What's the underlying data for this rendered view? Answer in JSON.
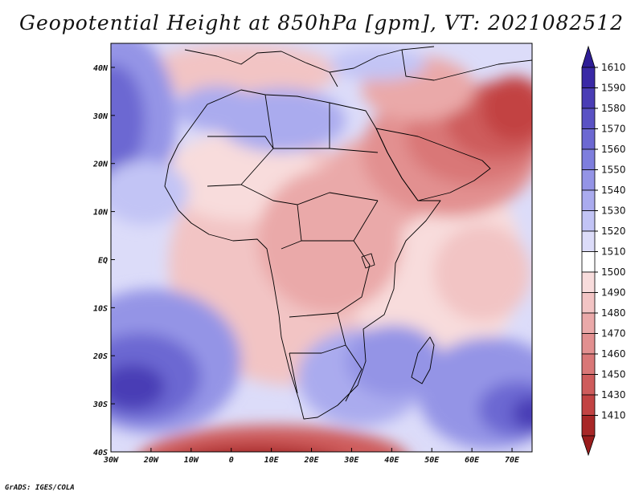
{
  "title": "Geopotential Height at 850hPa [gpm], VT: 2021082512",
  "credit": "GrADS: IGES/COLA",
  "map": {
    "projection": "latlon",
    "lon_range": [
      -30,
      75
    ],
    "lat_range": [
      -40,
      45
    ],
    "lon_ticks": [
      {
        "value": -30,
        "label": "30W"
      },
      {
        "value": -20,
        "label": "20W"
      },
      {
        "value": -10,
        "label": "10W"
      },
      {
        "value": 0,
        "label": "0"
      },
      {
        "value": 10,
        "label": "10E"
      },
      {
        "value": 20,
        "label": "20E"
      },
      {
        "value": 30,
        "label": "30E"
      },
      {
        "value": 40,
        "label": "40E"
      },
      {
        "value": 50,
        "label": "50E"
      },
      {
        "value": 60,
        "label": "60E"
      },
      {
        "value": 70,
        "label": "70E"
      }
    ],
    "lat_ticks": [
      {
        "value": 40,
        "label": "40N"
      },
      {
        "value": 30,
        "label": "30N"
      },
      {
        "value": 20,
        "label": "20N"
      },
      {
        "value": 10,
        "label": "10N"
      },
      {
        "value": 0,
        "label": "EQ"
      },
      {
        "value": -10,
        "label": "10S"
      },
      {
        "value": -20,
        "label": "20S"
      },
      {
        "value": -30,
        "label": "30S"
      },
      {
        "value": -40,
        "label": "40S"
      }
    ],
    "features": {
      "low_centers": [
        {
          "name": "south-atlantic-cold-low",
          "lon": -5,
          "lat": -39
        },
        {
          "name": "arabia-iran-heat-low",
          "lon": 65,
          "lat": 30
        }
      ],
      "high_centers": [
        {
          "name": "south-atlantic-high",
          "lon": -27,
          "lat": -27
        },
        {
          "name": "azores-high",
          "lon": -30,
          "lat": 31
        },
        {
          "name": "mascarene-high",
          "lon": 75,
          "lat": -32
        }
      ]
    }
  },
  "colorbar": {
    "levels": [
      {
        "label": "1610",
        "color": "#3a29a6"
      },
      {
        "label": "1590",
        "color": "#4a3db5"
      },
      {
        "label": "1580",
        "color": "#5a52c4"
      },
      {
        "label": "1570",
        "color": "#6c68d2"
      },
      {
        "label": "1560",
        "color": "#7e7edd"
      },
      {
        "label": "1550",
        "color": "#9494e6"
      },
      {
        "label": "1540",
        "color": "#aaabee"
      },
      {
        "label": "1530",
        "color": "#c2c4f5"
      },
      {
        "label": "1520",
        "color": "#dcdcf9"
      },
      {
        "label": "1510",
        "color": "#ffffff"
      },
      {
        "label": "1500",
        "color": "#f8dcdc"
      },
      {
        "label": "1490",
        "color": "#f2c4c4"
      },
      {
        "label": "1480",
        "color": "#eaa9a9"
      },
      {
        "label": "1470",
        "color": "#e29090"
      },
      {
        "label": "1460",
        "color": "#d97777"
      },
      {
        "label": "1450",
        "color": "#ce5c5c"
      },
      {
        "label": "1430",
        "color": "#c24343"
      },
      {
        "label": "1410",
        "color": "#a82727"
      }
    ],
    "top_color": "#2e1d96",
    "bottom_color": "#9a1c1c"
  }
}
